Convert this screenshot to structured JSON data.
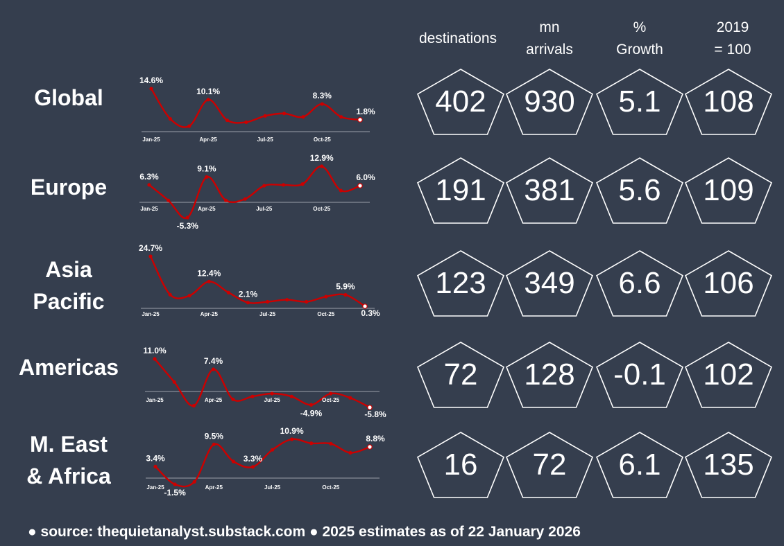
{
  "headers": {
    "destinations": "destinations",
    "arrivals": "mn\narrivals",
    "growth": "%\nGrowth",
    "index": "2019\n= 100"
  },
  "source_line": "● source: thequietanalyst.substack.com ● 2025 estimates as of 22 January 2026",
  "colors": {
    "background": "#353e4e",
    "line": "#cc0000",
    "axis": "#9aa0aa",
    "pentagon": "#ffffff"
  },
  "chart_data": [
    {
      "type": "line",
      "region": "Global",
      "x": [
        "Jan-25",
        "Feb-25",
        "Mar-25",
        "Apr-25",
        "May-25",
        "Jun-25",
        "Jul-25",
        "Aug-25",
        "Sep-25",
        "Oct-25",
        "Nov-25",
        "Dec-25"
      ],
      "tick_labels": [
        "Jan-25",
        "Apr-25",
        "Jul-25",
        "Oct-25"
      ],
      "values": [
        14.6,
        2.2,
        -0.8,
        10.1,
        1.6,
        0.8,
        3.4,
        4.4,
        3.0,
        8.3,
        3.0,
        1.8
      ],
      "labels": [
        {
          "i": 0,
          "text": "14.6%"
        },
        {
          "i": 3,
          "text": "10.1%"
        },
        {
          "i": 9,
          "text": "8.3%"
        },
        {
          "i": 11,
          "text": "1.8%"
        }
      ],
      "metrics": {
        "destinations": "402",
        "arrivals": "930",
        "growth": "5.1",
        "index": "108"
      }
    },
    {
      "type": "line",
      "region": "Europe",
      "x": [
        "Jan-25",
        "Feb-25",
        "Mar-25",
        "Apr-25",
        "May-25",
        "Jun-25",
        "Jul-25",
        "Aug-25",
        "Sep-25",
        "Oct-25",
        "Nov-25",
        "Dec-25"
      ],
      "tick_labels": [
        "Jan-25",
        "Apr-25",
        "Jul-25",
        "Oct-25"
      ],
      "values": [
        6.3,
        0.8,
        -5.3,
        9.1,
        0.8,
        1.3,
        6.0,
        6.3,
        6.6,
        12.9,
        4.3,
        6.0
      ],
      "labels": [
        {
          "i": 0,
          "text": "6.3%"
        },
        {
          "i": 2,
          "text": "-5.3%"
        },
        {
          "i": 3,
          "text": "9.1%"
        },
        {
          "i": 9,
          "text": "12.9%"
        },
        {
          "i": 11,
          "text": "6.0%"
        }
      ],
      "metrics": {
        "destinations": "191",
        "arrivals": "381",
        "growth": "5.6",
        "index": "109"
      }
    },
    {
      "type": "line",
      "region": "Asia\nPacific",
      "x": [
        "Jan-25",
        "Feb-25",
        "Mar-25",
        "Apr-25",
        "May-25",
        "Jun-25",
        "Jul-25",
        "Aug-25",
        "Sep-25",
        "Oct-25",
        "Nov-25",
        "Dec-25"
      ],
      "tick_labels": [
        "Jan-25",
        "Apr-25",
        "Jul-25",
        "Oct-25"
      ],
      "values": [
        24.7,
        6.0,
        5.5,
        12.4,
        7.0,
        2.1,
        2.5,
        3.5,
        2.5,
        5.0,
        5.9,
        0.3
      ],
      "labels": [
        {
          "i": 0,
          "text": "24.7%"
        },
        {
          "i": 3,
          "text": "12.4%"
        },
        {
          "i": 5,
          "text": "2.1%"
        },
        {
          "i": 10,
          "text": "5.9%"
        },
        {
          "i": 11,
          "text": "0.3%"
        }
      ],
      "metrics": {
        "destinations": "123",
        "arrivals": "349",
        "growth": "6.6",
        "index": "106"
      }
    },
    {
      "type": "line",
      "region": "Americas",
      "x": [
        "Jan-25",
        "Feb-25",
        "Mar-25",
        "Apr-25",
        "May-25",
        "Jun-25",
        "Jul-25",
        "Aug-25",
        "Sep-25",
        "Oct-25",
        "Nov-25",
        "Dec-25"
      ],
      "tick_labels": [
        "Jan-25",
        "Apr-25",
        "Jul-25",
        "Oct-25"
      ],
      "values": [
        11.0,
        3.0,
        -5.2,
        7.4,
        -3.0,
        -2.0,
        -1.0,
        -2.0,
        -4.9,
        -1.0,
        -2.5,
        -5.8
      ],
      "labels": [
        {
          "i": 0,
          "text": "11.0%"
        },
        {
          "i": 3,
          "text": "7.4%"
        },
        {
          "i": 8,
          "text": "-4.9%"
        },
        {
          "i": 11,
          "text": "-5.8%"
        }
      ],
      "metrics": {
        "destinations": "72",
        "arrivals": "128",
        "growth": "-0.1",
        "index": "102"
      }
    },
    {
      "type": "line",
      "region": "M. East\n& Africa",
      "x": [
        "Jan-25",
        "Feb-25",
        "Mar-25",
        "Apr-25",
        "May-25",
        "Jun-25",
        "Jul-25",
        "Aug-25",
        "Sep-25",
        "Oct-25",
        "Nov-25",
        "Dec-25"
      ],
      "tick_labels": [
        "Jan-25",
        "Apr-25",
        "Jul-25",
        "Oct-25"
      ],
      "values": [
        3.4,
        -1.5,
        -0.8,
        9.5,
        4.8,
        3.3,
        8.0,
        10.9,
        9.8,
        9.7,
        7.2,
        8.8
      ],
      "labels": [
        {
          "i": 0,
          "text": "3.4%"
        },
        {
          "i": 1,
          "text": "-1.5%"
        },
        {
          "i": 3,
          "text": "9.5%"
        },
        {
          "i": 5,
          "text": "3.3%"
        },
        {
          "i": 7,
          "text": "10.9%"
        },
        {
          "i": 11,
          "text": "8.8%"
        }
      ],
      "metrics": {
        "destinations": "16",
        "arrivals": "72",
        "growth": "6.1",
        "index": "135"
      }
    }
  ]
}
